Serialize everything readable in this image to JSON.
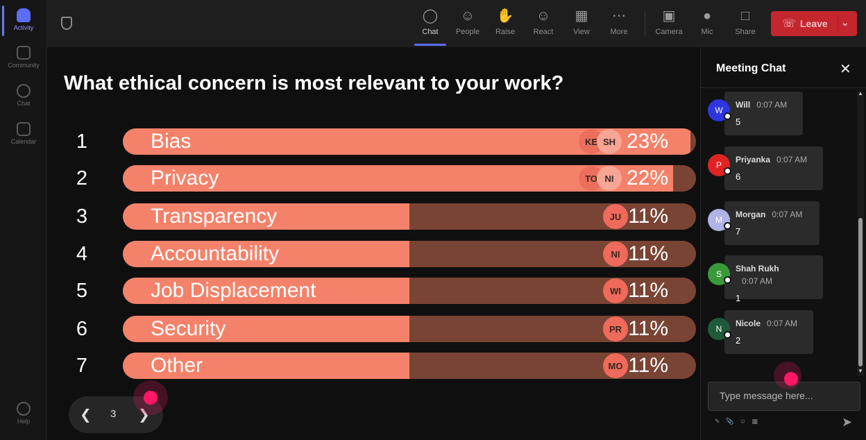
{
  "rail": {
    "items": [
      {
        "label": "Activity",
        "icon": "bell-icon"
      },
      {
        "label": "Community",
        "icon": "community-icon"
      },
      {
        "label": "Chat",
        "icon": "chat-icon"
      },
      {
        "label": "Calendar",
        "icon": "calendar-icon"
      },
      {
        "label": "Help",
        "icon": "help-icon"
      }
    ]
  },
  "toolbar": {
    "chat": "Chat",
    "people": "People",
    "raise": "Raise",
    "react": "React",
    "view": "View",
    "more": "More",
    "camera": "Camera",
    "mic": "Mic",
    "share": "Share",
    "leave": "Leave"
  },
  "poll": {
    "question": "What ethical concern is most relevant to your work?",
    "options": [
      {
        "num": "1",
        "label": "Bias",
        "pct": "23%",
        "fraction": 0.99,
        "avatars": [
          "KE",
          "SH"
        ]
      },
      {
        "num": "2",
        "label": "Privacy",
        "pct": "22%",
        "fraction": 0.96,
        "avatars": [
          "TO",
          "NI"
        ]
      },
      {
        "num": "3",
        "label": "Transparency",
        "pct": "11%",
        "fraction": 0.5,
        "avatars": [
          "JU"
        ]
      },
      {
        "num": "4",
        "label": "Accountability",
        "pct": "11%",
        "fraction": 0.5,
        "avatars": [
          "NI"
        ]
      },
      {
        "num": "5",
        "label": "Job Displacement",
        "pct": "11%",
        "fraction": 0.5,
        "avatars": [
          "WI"
        ]
      },
      {
        "num": "6",
        "label": "Security",
        "pct": "11%",
        "fraction": 0.5,
        "avatars": [
          "PR"
        ]
      },
      {
        "num": "7",
        "label": "Other",
        "pct": "11%",
        "fraction": 0.5,
        "avatars": [
          "MO"
        ]
      }
    ]
  },
  "pager": {
    "page": "3"
  },
  "chat": {
    "title": "Meeting Chat",
    "placeholder": "Type message here...",
    "messages": [
      {
        "initial": "W",
        "name": "Will",
        "time": "0:07 AM",
        "text": "5",
        "color": "#2f35e0"
      },
      {
        "initial": "P",
        "name": "Priyanka",
        "time": "0:07 AM",
        "text": "6",
        "color": "#e02424"
      },
      {
        "initial": "M",
        "name": "Morgan",
        "time": "0:07 AM",
        "text": "7",
        "color": "#b0b3e6"
      },
      {
        "initial": "S",
        "name": "Shah Rukh",
        "time": "0:07 AM",
        "text": "1",
        "color": "#3a9a3a"
      },
      {
        "initial": "N",
        "name": "Nicole",
        "time": "0:07 AM",
        "text": "2",
        "color": "#1f5a3a"
      }
    ]
  }
}
